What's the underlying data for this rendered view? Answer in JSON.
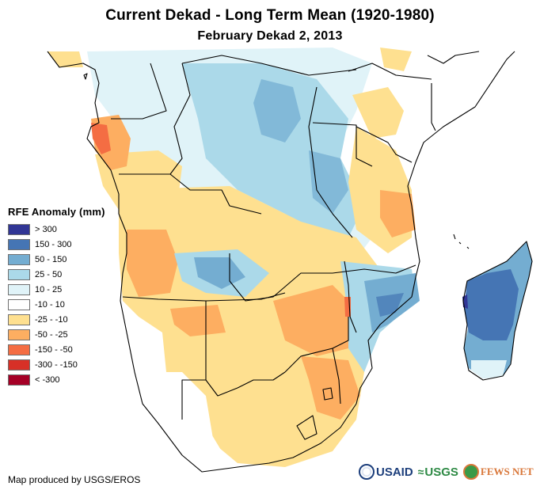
{
  "header": {
    "title": "Current Dekad - Long Term Mean (1920-1980)",
    "subtitle": "February Dekad 2, 2013"
  },
  "legend": {
    "title": "RFE Anomaly (mm)",
    "items": [
      {
        "label": "> 300",
        "color": "#313695"
      },
      {
        "label": "150 - 300",
        "color": "#4575b4"
      },
      {
        "label": "50 - 150",
        "color": "#74add1"
      },
      {
        "label": "25 - 50",
        "color": "#abd9e9"
      },
      {
        "label": "10 - 25",
        "color": "#e0f3f8"
      },
      {
        "label": "-10 - 10",
        "color": "#ffffff"
      },
      {
        "label": "-25 - -10",
        "color": "#fee090"
      },
      {
        "label": "-50 - -25",
        "color": "#fdae61"
      },
      {
        "label": "-150 - -50",
        "color": "#f46d43"
      },
      {
        "label": "-300 - -150",
        "color": "#d73027"
      },
      {
        "label": "< -300",
        "color": "#a50026"
      }
    ]
  },
  "footer": {
    "credit": "Map produced by USGS/EROS",
    "logos": [
      {
        "name": "USAID",
        "icon": "usaid-seal-icon"
      },
      {
        "name": "USGS",
        "icon": "usgs-wave-icon"
      },
      {
        "name": "FEWS NET",
        "icon": "fews-globe-icon"
      }
    ]
  }
}
